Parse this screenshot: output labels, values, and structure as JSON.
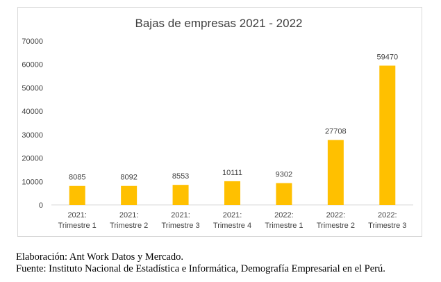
{
  "chart_data": {
    "type": "bar",
    "title": "Bajas de empresas 2021 - 2022",
    "categories": [
      [
        "2021:",
        "Trimestre 1"
      ],
      [
        "2021:",
        "Trimestre 2"
      ],
      [
        "2021:",
        "Trimestre 3"
      ],
      [
        "2021:",
        "Trimestre 4"
      ],
      [
        "2022:",
        "Trimestre 1"
      ],
      [
        "2022:",
        "Trimestre 2"
      ],
      [
        "2022:",
        "Trimestre 3"
      ]
    ],
    "values": [
      8085,
      8092,
      8553,
      10111,
      9302,
      27708,
      59470
    ],
    "ylim": [
      0,
      70000
    ],
    "yticks": [
      0,
      10000,
      20000,
      30000,
      40000,
      50000,
      60000,
      70000
    ],
    "grid": false,
    "bar_color": "#FFC000",
    "data_labels": true
  },
  "notes": {
    "elaboracion": "Elaboración: Ant Work Datos y Mercado.",
    "fuente": "Fuente: Instituto Nacional de Estadística e Informática, Demografía Empresarial en el Perú."
  }
}
